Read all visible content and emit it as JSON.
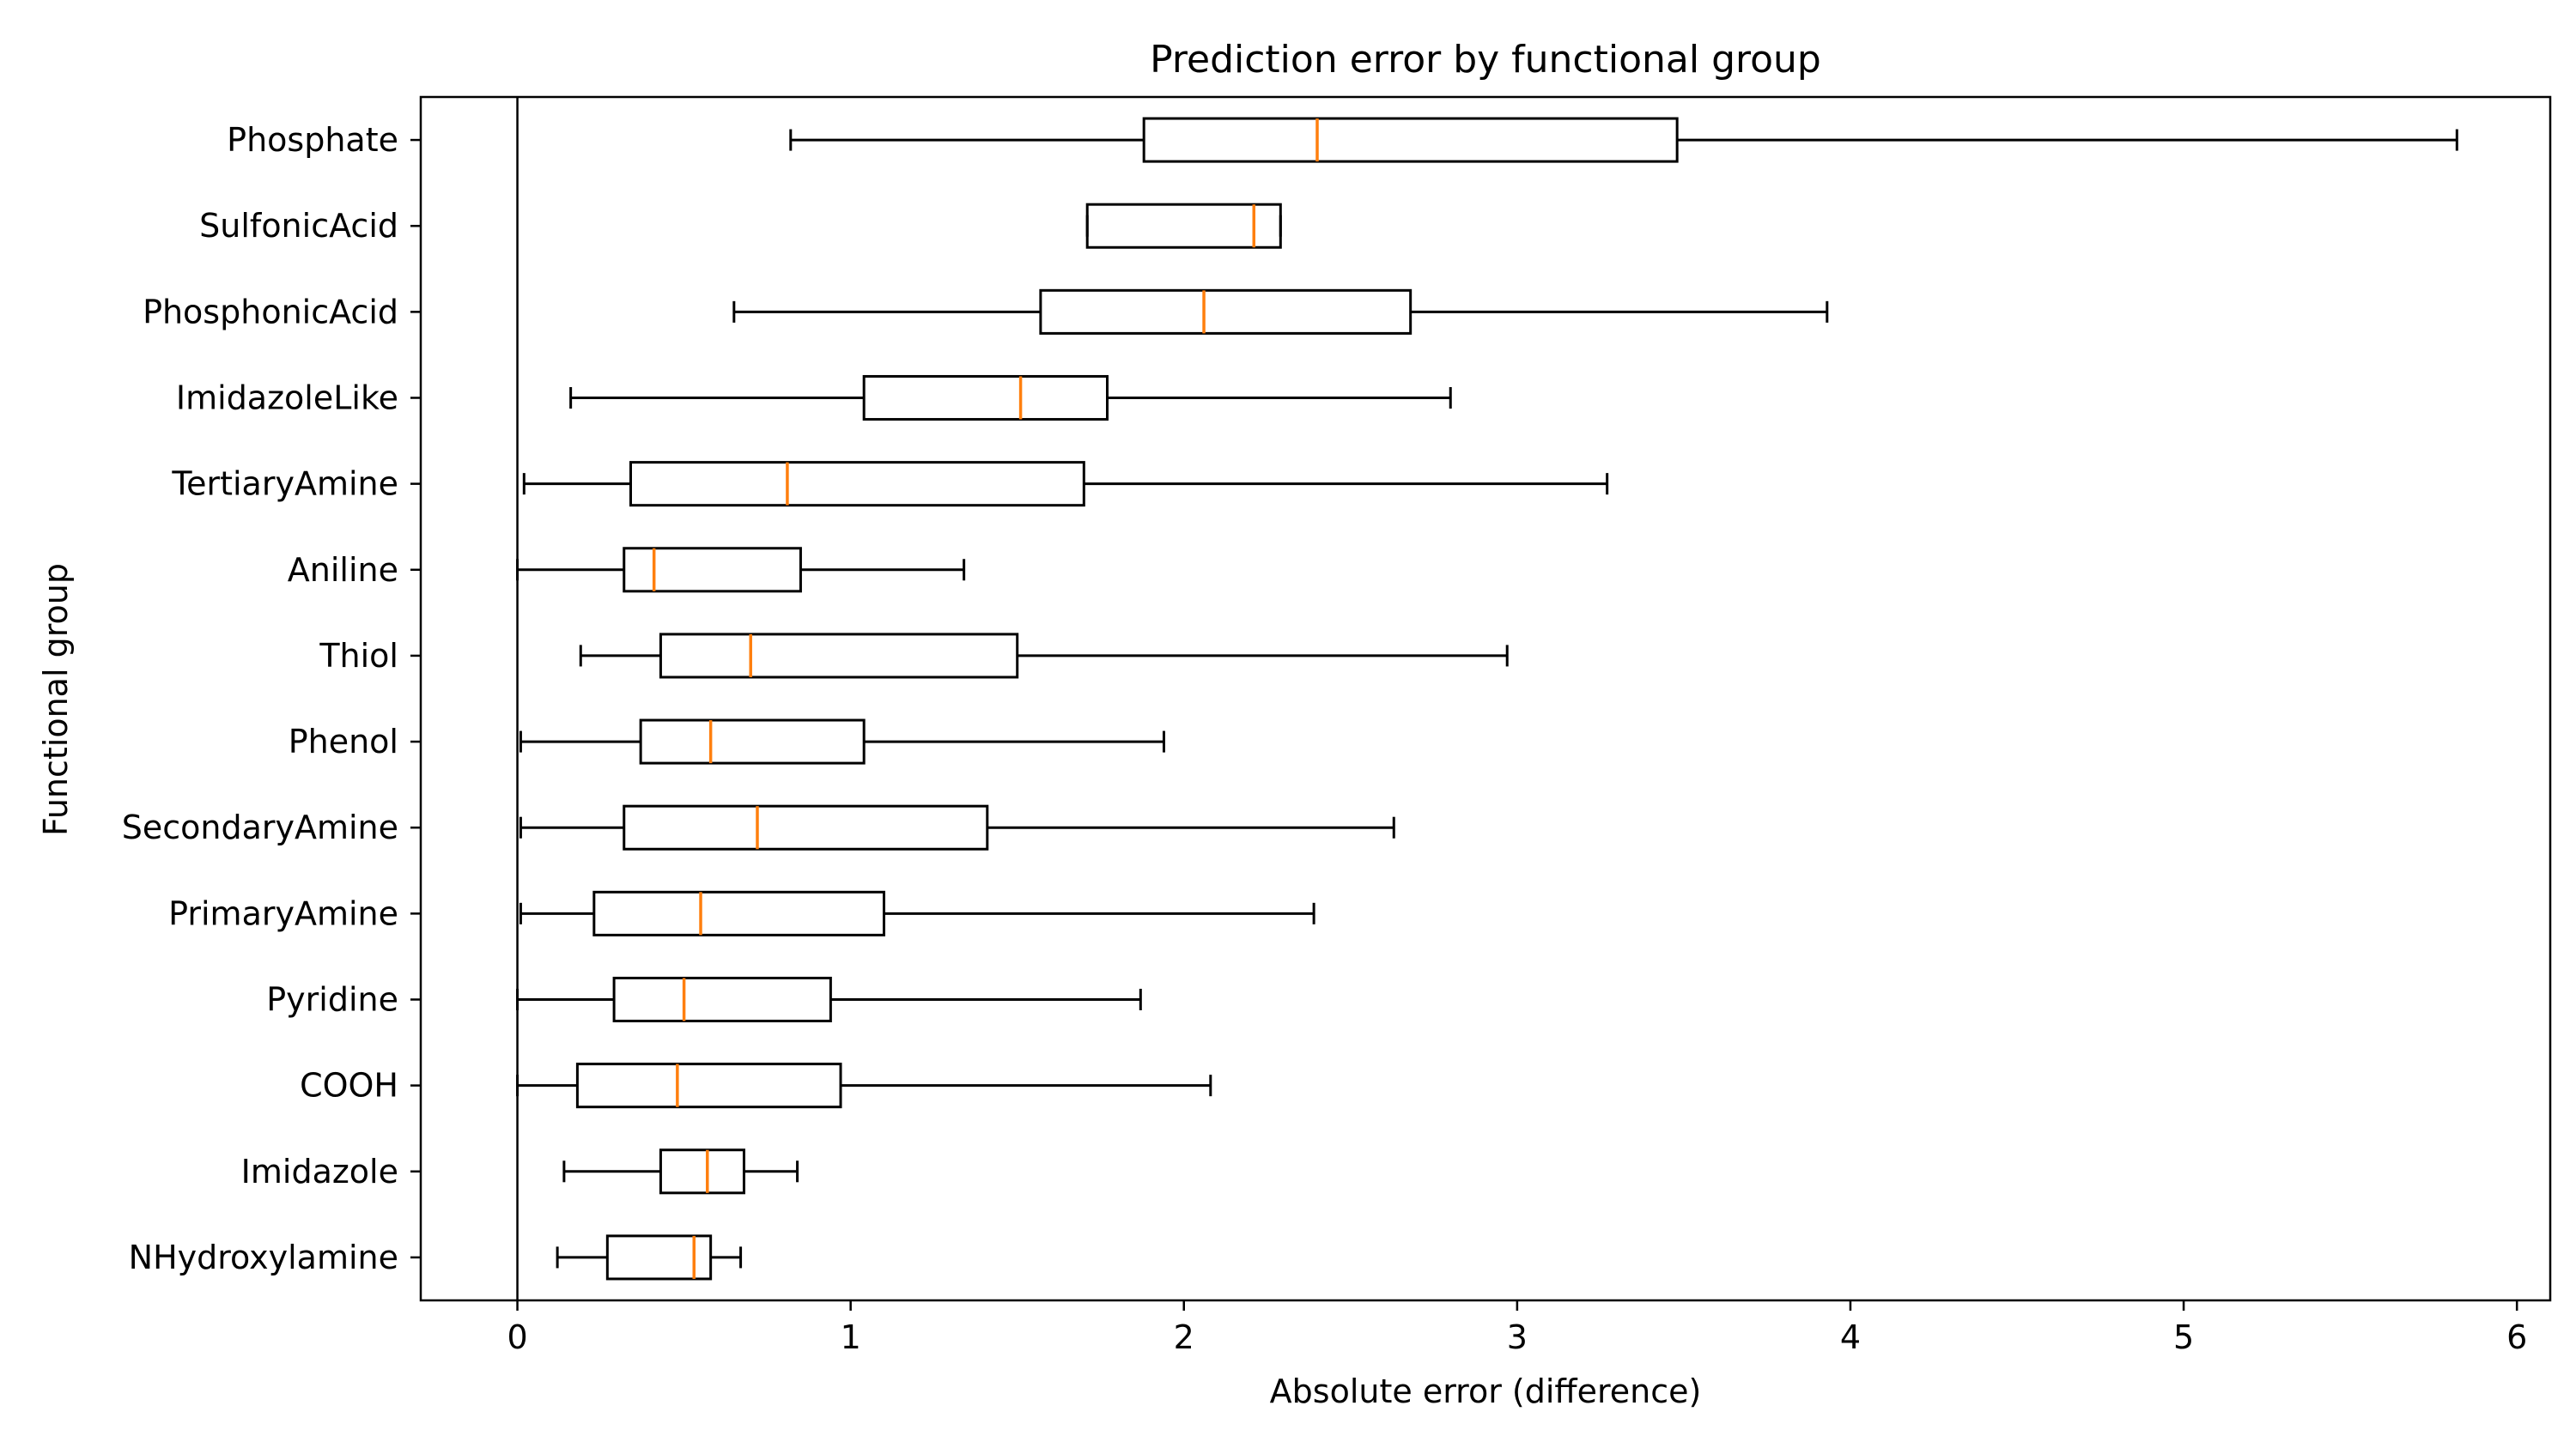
{
  "chart_data": {
    "type": "boxplot",
    "orientation": "horizontal",
    "title": "Prediction error by functional group",
    "xlabel": "Absolute error (difference)",
    "ylabel": "Functional group",
    "xlim": [
      -0.29,
      6.1
    ],
    "xticks": [
      0,
      1,
      2,
      3,
      4,
      5,
      6
    ],
    "reference_line_x": 0,
    "grid": false,
    "box_color": "#000000",
    "median_color": "#ff7f0e",
    "groups": [
      {
        "name": "Phosphate",
        "whisker_low": 0.82,
        "q1": 1.88,
        "median": 2.4,
        "q3": 3.48,
        "whisker_high": 5.82
      },
      {
        "name": "SulfonicAcid",
        "whisker_low": 1.71,
        "q1": 1.71,
        "median": 2.21,
        "q3": 2.29,
        "whisker_high": 2.29
      },
      {
        "name": "PhosphonicAcid",
        "whisker_low": 0.65,
        "q1": 1.57,
        "median": 2.06,
        "q3": 2.68,
        "whisker_high": 3.93
      },
      {
        "name": "ImidazoleLike",
        "whisker_low": 0.16,
        "q1": 1.04,
        "median": 1.51,
        "q3": 1.77,
        "whisker_high": 2.8
      },
      {
        "name": "TertiaryAmine",
        "whisker_low": 0.02,
        "q1": 0.34,
        "median": 0.81,
        "q3": 1.7,
        "whisker_high": 3.27
      },
      {
        "name": "Aniline",
        "whisker_low": 0.0,
        "q1": 0.32,
        "median": 0.41,
        "q3": 0.85,
        "whisker_high": 1.34
      },
      {
        "name": "Thiol",
        "whisker_low": 0.19,
        "q1": 0.43,
        "median": 0.7,
        "q3": 1.5,
        "whisker_high": 2.97
      },
      {
        "name": "Phenol",
        "whisker_low": 0.01,
        "q1": 0.37,
        "median": 0.58,
        "q3": 1.04,
        "whisker_high": 1.94
      },
      {
        "name": "SecondaryAmine",
        "whisker_low": 0.01,
        "q1": 0.32,
        "median": 0.72,
        "q3": 1.41,
        "whisker_high": 2.63
      },
      {
        "name": "PrimaryAmine",
        "whisker_low": 0.01,
        "q1": 0.23,
        "median": 0.55,
        "q3": 1.1,
        "whisker_high": 2.39
      },
      {
        "name": "Pyridine",
        "whisker_low": 0.0,
        "q1": 0.29,
        "median": 0.5,
        "q3": 0.94,
        "whisker_high": 1.87
      },
      {
        "name": "COOH",
        "whisker_low": 0.0,
        "q1": 0.18,
        "median": 0.48,
        "q3": 0.97,
        "whisker_high": 2.08
      },
      {
        "name": "Imidazole",
        "whisker_low": 0.14,
        "q1": 0.43,
        "median": 0.57,
        "q3": 0.68,
        "whisker_high": 0.84
      },
      {
        "name": "NHydroxylamine",
        "whisker_low": 0.12,
        "q1": 0.27,
        "median": 0.53,
        "q3": 0.58,
        "whisker_high": 0.67
      }
    ]
  }
}
